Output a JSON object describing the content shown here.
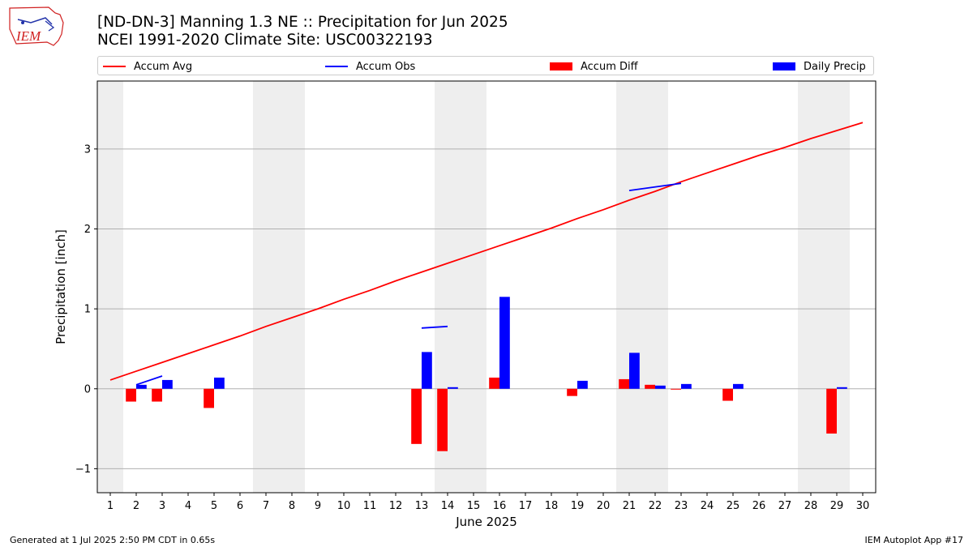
{
  "header": {
    "title_line1": "[ND-DN-3] Manning 1.3 NE :: Precipitation for Jun 2025",
    "title_line2": "NCEI 1991-2020 Climate Site: USC00322193",
    "logo_text": "IEM"
  },
  "footer": {
    "generated": "Generated at 1 Jul 2025 2:50 PM CDT in 0.65s",
    "app": "IEM Autoplot App #17"
  },
  "colors": {
    "avg": "#ff0000",
    "obs": "#0000ff",
    "diff": "#ff0000",
    "daily": "#0000ff",
    "weekend": "#eeeeee",
    "grid": "#b0b0b0"
  },
  "chart_data": {
    "type": "bar",
    "xlabel": "June 2025",
    "ylabel": "Precipitation [inch]",
    "xlim": [
      0.5,
      30.5
    ],
    "ylim": [
      -1.3,
      3.85
    ],
    "yticks": [
      -1,
      0,
      1,
      2,
      3
    ],
    "ytick_labels": [
      "−1",
      "0",
      "1",
      "2",
      "3"
    ],
    "grid": "horizontal",
    "legend_placement": "top",
    "days": [
      1,
      2,
      3,
      4,
      5,
      6,
      7,
      8,
      9,
      10,
      11,
      12,
      13,
      14,
      15,
      16,
      17,
      18,
      19,
      20,
      21,
      22,
      23,
      24,
      25,
      26,
      27,
      28,
      29,
      30
    ],
    "weekend_days": [
      1,
      7,
      8,
      14,
      15,
      21,
      22,
      28,
      29
    ],
    "series": [
      {
        "name": "Accum Avg",
        "type": "line",
        "values": [
          0.11,
          0.22,
          0.33,
          0.44,
          0.55,
          0.66,
          0.78,
          0.89,
          1.0,
          1.12,
          1.23,
          1.35,
          1.46,
          1.57,
          1.68,
          1.79,
          1.9,
          2.01,
          2.13,
          2.24,
          2.36,
          2.47,
          2.59,
          2.7,
          2.81,
          2.92,
          3.02,
          3.13,
          3.23,
          3.33
        ]
      },
      {
        "name": "Accum Obs",
        "type": "line",
        "segments": [
          {
            "x": [
              2,
              3
            ],
            "y": [
              0.05,
              0.16
            ]
          },
          {
            "x": [
              13,
              14
            ],
            "y": [
              0.76,
              0.78
            ]
          },
          {
            "x": [
              21,
              23
            ],
            "y": [
              2.48,
              2.57
            ]
          }
        ]
      },
      {
        "name": "Accum Diff",
        "type": "bar",
        "values": [
          0,
          -0.16,
          -0.16,
          0,
          -0.24,
          0,
          0,
          0,
          0,
          0,
          0,
          0,
          -0.69,
          -0.78,
          0,
          0.14,
          0,
          0,
          -0.09,
          0,
          0.12,
          0.05,
          -0.01,
          0,
          -0.15,
          0,
          0,
          0,
          -0.56,
          0
        ]
      },
      {
        "name": "Daily Precip",
        "type": "bar",
        "values": [
          0,
          0.05,
          0.11,
          0,
          0.14,
          0,
          0,
          0,
          0,
          0,
          0,
          0,
          0.46,
          0.02,
          0,
          1.15,
          0,
          0,
          0.1,
          0,
          0.45,
          0.04,
          0.06,
          0,
          0.06,
          0,
          0,
          0,
          0.02,
          0
        ]
      }
    ]
  }
}
